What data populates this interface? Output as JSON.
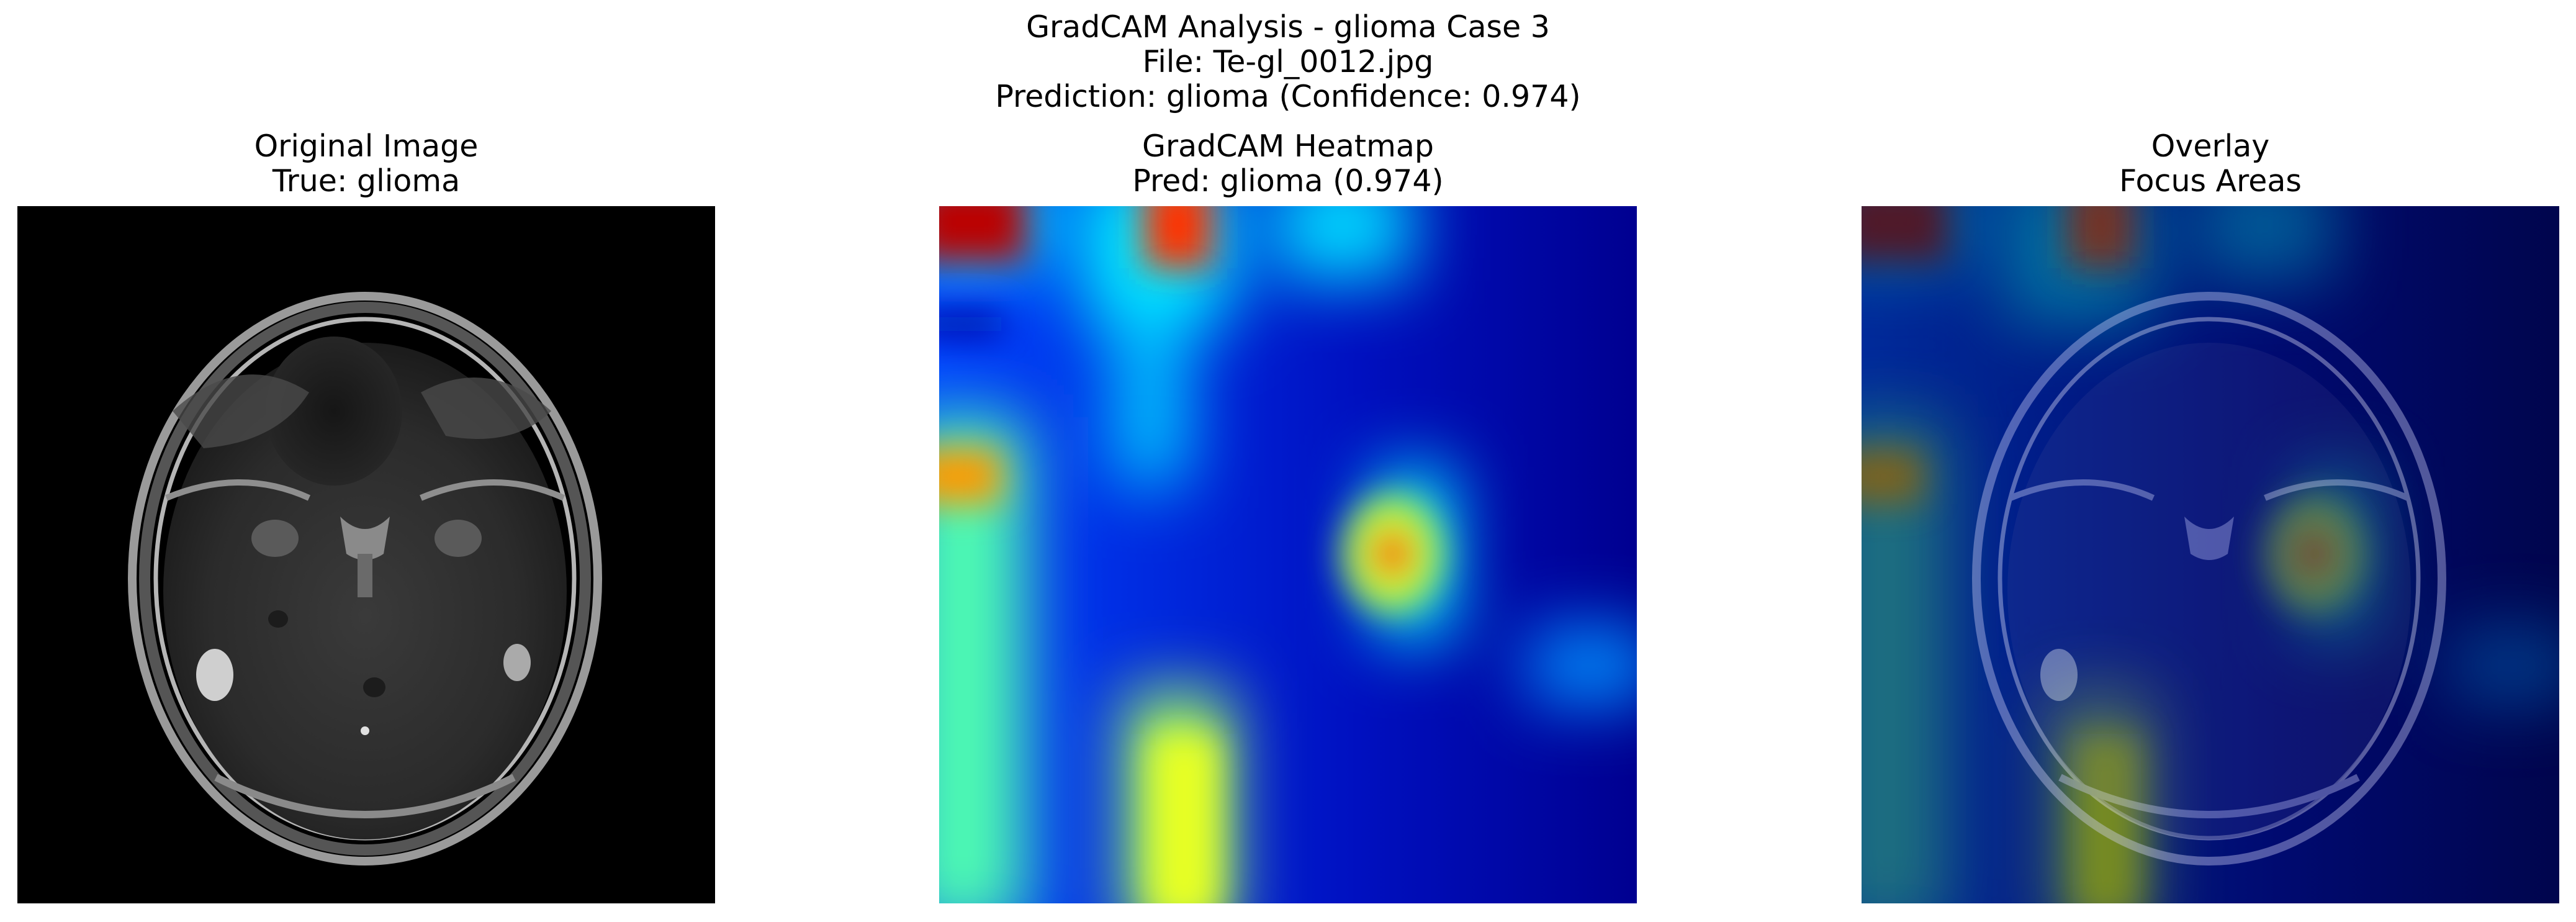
{
  "figure": {
    "title_line1": "GradCAM Analysis - glioma Case 3",
    "title_line2": "File: Te-gl_0012.jpg",
    "title_line3": "Prediction: glioma (Confidence: 0.974)"
  },
  "panels": {
    "original": {
      "title_line1": "Original Image",
      "title_line2": "True: glioma"
    },
    "heatmap": {
      "title_line1": "GradCAM Heatmap",
      "title_line2": "Pred: glioma (0.974)"
    },
    "overlay": {
      "title_line1": "Overlay",
      "title_line2": "Focus Areas"
    }
  },
  "colormap": "jet",
  "colors": {
    "background": "#ffffff",
    "mri_background": "#000000"
  }
}
